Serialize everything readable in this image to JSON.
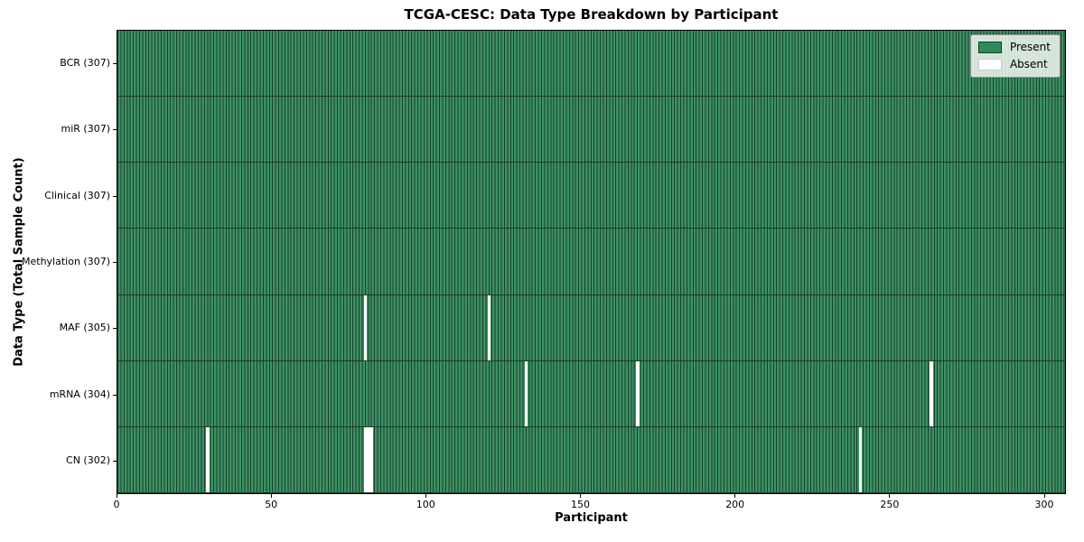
{
  "title": "TCGA-CESC: Data Type Breakdown by Participant",
  "x_axis": {
    "label": "Participant"
  },
  "y_axis": {
    "label": "Data Type (Total Sample Count)"
  },
  "legend": {
    "present_label": "Present",
    "absent_label": "Absent"
  },
  "colors": {
    "present_fill": "#3d9164",
    "bar_edge": "#17402b",
    "present_legend": "#2e8b57",
    "absent": "#ffffff",
    "legend_bg": "rgba(237,242,237,0.88)",
    "legend_border": "#8f8f8f",
    "spine": "#000000"
  },
  "chart_data": {
    "type": "heatmap",
    "title": "TCGA-CESC: Data Type Breakdown by Participant",
    "xlabel": "Participant",
    "ylabel": "Data Type (Total Sample Count)",
    "x_ticks": [
      0,
      50,
      100,
      150,
      200,
      250,
      300
    ],
    "xlim": [
      0,
      307
    ],
    "n_participants": 307,
    "legend": [
      "Present",
      "Absent"
    ],
    "present_color": "#2e8b57",
    "absent_color": "#ffffff",
    "grid": false,
    "legend_position": "upper right",
    "rows": [
      {
        "label": "BCR (307)",
        "data_type": "BCR",
        "total": 307,
        "absent": []
      },
      {
        "label": "miR (307)",
        "data_type": "miR",
        "total": 307,
        "absent": []
      },
      {
        "label": "Clinical (307)",
        "data_type": "Clinical",
        "total": 307,
        "absent": []
      },
      {
        "label": "Methylation (307)",
        "data_type": "Methylation",
        "total": 307,
        "absent": []
      },
      {
        "label": "MAF (305)",
        "data_type": "MAF",
        "total": 305,
        "absent": [
          80,
          120
        ]
      },
      {
        "label": "mRNA (304)",
        "data_type": "mRNA",
        "total": 304,
        "absent": [
          132,
          168,
          263
        ]
      },
      {
        "label": "CN (302)",
        "data_type": "CN",
        "total": 302,
        "absent": [
          29,
          80,
          81,
          82,
          240
        ]
      }
    ]
  }
}
